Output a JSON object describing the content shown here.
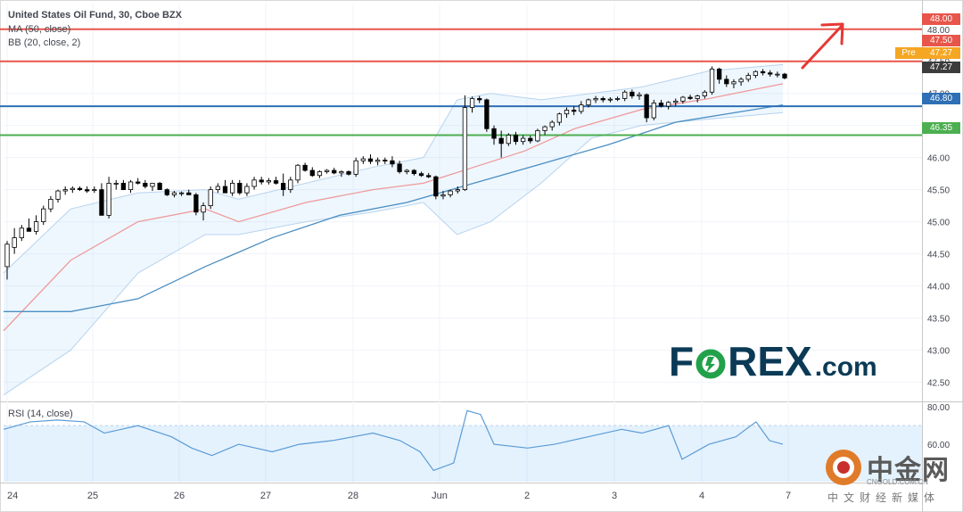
{
  "chart_data": {
    "type": "candlestick",
    "title": "United States Oil Fund, 30, Cboe BZX",
    "ma_label": "MA (50, close)",
    "bb_label": "BB (20, close, 2)",
    "x_ticks": [
      "24",
      "25",
      "26",
      "27",
      "28",
      "Jun",
      "2",
      "3",
      "4",
      "7"
    ],
    "y_ticks": [
      "48.00",
      "47.50",
      "47.00",
      "46.50",
      "46.00",
      "45.50",
      "45.00",
      "44.50",
      "44.00",
      "43.50",
      "43.00",
      "42.50"
    ],
    "ylim": [
      42.2,
      48.4
    ],
    "price_labels": {
      "resistance_high": "48.00",
      "resistance_mid": "47.50",
      "pre_label": "Pre",
      "pre_value": "47.27",
      "last_value": "47.27",
      "support_high": "46.80",
      "support_low": "46.35"
    },
    "levels": [
      {
        "value": 48.0,
        "color": "#e8554a"
      },
      {
        "value": 47.5,
        "color": "#e8554a"
      },
      {
        "value": 46.8,
        "color": "#2e6fb5"
      },
      {
        "value": 46.35,
        "color": "#4caf50"
      }
    ],
    "candles": [
      [
        44.3,
        44.7,
        44.1,
        44.65
      ],
      [
        44.6,
        44.9,
        44.5,
        44.75
      ],
      [
        44.75,
        44.95,
        44.7,
        44.9
      ],
      [
        44.9,
        45.05,
        44.85,
        44.85
      ],
      [
        44.85,
        45.1,
        44.8,
        45.0
      ],
      [
        45.0,
        45.25,
        44.95,
        45.2
      ],
      [
        45.2,
        45.4,
        45.15,
        45.35
      ],
      [
        45.35,
        45.5,
        45.3,
        45.48
      ],
      [
        45.48,
        45.55,
        45.42,
        45.5
      ],
      [
        45.5,
        45.55,
        45.45,
        45.52
      ],
      [
        45.52,
        45.55,
        45.48,
        45.5
      ],
      [
        45.5,
        45.55,
        45.45,
        45.48
      ],
      [
        45.5,
        45.55,
        45.45,
        45.5
      ],
      [
        45.5,
        45.6,
        45.1,
        45.1
      ],
      [
        45.1,
        45.7,
        45.05,
        45.6
      ],
      [
        45.6,
        45.65,
        45.5,
        45.6
      ],
      [
        45.6,
        45.65,
        45.5,
        45.5
      ],
      [
        45.5,
        45.65,
        45.45,
        45.62
      ],
      [
        45.62,
        45.68,
        45.58,
        45.6
      ],
      [
        45.6,
        45.65,
        45.52,
        45.55
      ],
      [
        45.55,
        45.6,
        45.48,
        45.6
      ],
      [
        45.6,
        45.62,
        45.5,
        45.5
      ],
      [
        45.5,
        45.52,
        45.4,
        45.42
      ],
      [
        45.42,
        45.48,
        45.38,
        45.45
      ],
      [
        45.45,
        45.47,
        45.4,
        45.45
      ],
      [
        45.45,
        45.5,
        45.42,
        45.42
      ],
      [
        45.42,
        45.45,
        45.1,
        45.15
      ],
      [
        45.15,
        45.3,
        45.02,
        45.25
      ],
      [
        45.25,
        45.55,
        45.2,
        45.5
      ],
      [
        45.5,
        45.6,
        45.45,
        45.55
      ],
      [
        45.55,
        45.65,
        45.45,
        45.45
      ],
      [
        45.45,
        45.65,
        45.4,
        45.6
      ],
      [
        45.6,
        45.65,
        45.42,
        45.45
      ],
      [
        45.45,
        45.6,
        45.4,
        45.55
      ],
      [
        45.55,
        45.7,
        45.5,
        45.65
      ],
      [
        45.65,
        45.7,
        45.58,
        45.62
      ],
      [
        45.62,
        45.68,
        45.58,
        45.64
      ],
      [
        45.64,
        45.7,
        45.58,
        45.6
      ],
      [
        45.6,
        45.75,
        45.4,
        45.5
      ],
      [
        45.5,
        45.7,
        45.45,
        45.65
      ],
      [
        45.65,
        45.9,
        45.6,
        45.88
      ],
      [
        45.88,
        45.92,
        45.78,
        45.8
      ],
      [
        45.8,
        45.85,
        45.7,
        45.72
      ],
      [
        45.72,
        45.8,
        45.68,
        45.78
      ],
      [
        45.78,
        45.82,
        45.75,
        45.8
      ],
      [
        45.8,
        45.84,
        45.74,
        45.76
      ],
      [
        45.76,
        45.8,
        45.7,
        45.78
      ],
      [
        45.78,
        45.8,
        45.72,
        45.74
      ],
      [
        45.74,
        46.0,
        45.7,
        45.95
      ],
      [
        45.95,
        46.02,
        45.9,
        45.98
      ],
      [
        45.98,
        46.05,
        45.9,
        45.94
      ],
      [
        45.94,
        46.0,
        45.88,
        45.96
      ],
      [
        45.96,
        46.0,
        45.9,
        45.95
      ],
      [
        45.95,
        46.02,
        45.85,
        45.9
      ],
      [
        45.9,
        45.95,
        45.75,
        45.78
      ],
      [
        45.78,
        45.82,
        45.74,
        45.8
      ],
      [
        45.8,
        45.82,
        45.72,
        45.75
      ],
      [
        45.75,
        45.78,
        45.7,
        45.72
      ],
      [
        45.72,
        45.76,
        45.68,
        45.7
      ],
      [
        45.7,
        45.72,
        45.35,
        45.4
      ],
      [
        45.4,
        45.48,
        45.35,
        45.42
      ],
      [
        45.42,
        45.5,
        45.38,
        45.48
      ],
      [
        45.48,
        45.55,
        45.44,
        45.5
      ],
      [
        45.5,
        46.97,
        45.48,
        46.78
      ],
      [
        46.78,
        46.95,
        46.7,
        46.92
      ],
      [
        46.92,
        46.96,
        46.85,
        46.9
      ],
      [
        46.9,
        46.92,
        46.4,
        46.45
      ],
      [
        46.45,
        46.5,
        46.2,
        46.3
      ],
      [
        46.3,
        46.42,
        46.0,
        46.22
      ],
      [
        46.22,
        46.38,
        46.18,
        46.35
      ],
      [
        46.35,
        46.4,
        46.2,
        46.25
      ],
      [
        46.25,
        46.35,
        46.2,
        46.3
      ],
      [
        46.3,
        46.34,
        46.22,
        46.26
      ],
      [
        46.26,
        46.45,
        46.24,
        46.42
      ],
      [
        46.42,
        46.5,
        46.35,
        46.48
      ],
      [
        46.48,
        46.58,
        46.42,
        46.55
      ],
      [
        46.55,
        46.7,
        46.5,
        46.68
      ],
      [
        46.68,
        46.78,
        46.62,
        46.74
      ],
      [
        46.74,
        46.8,
        46.66,
        46.72
      ],
      [
        46.72,
        46.88,
        46.68,
        46.82
      ],
      [
        46.82,
        46.92,
        46.78,
        46.9
      ],
      [
        46.9,
        46.96,
        46.85,
        46.92
      ],
      [
        46.92,
        46.95,
        46.86,
        46.9
      ],
      [
        46.9,
        46.94,
        46.86,
        46.91
      ],
      [
        46.91,
        46.95,
        46.88,
        46.92
      ],
      [
        46.92,
        47.05,
        46.88,
        47.02
      ],
      [
        47.02,
        47.06,
        46.92,
        46.96
      ],
      [
        46.96,
        47.02,
        46.9,
        46.98
      ],
      [
        46.98,
        47.0,
        46.55,
        46.62
      ],
      [
        46.62,
        46.9,
        46.58,
        46.85
      ],
      [
        46.85,
        46.9,
        46.78,
        46.8
      ],
      [
        46.8,
        46.88,
        46.75,
        46.86
      ],
      [
        46.86,
        46.92,
        46.8,
        46.88
      ],
      [
        46.88,
        46.96,
        46.84,
        46.94
      ],
      [
        46.94,
        46.98,
        46.9,
        46.92
      ],
      [
        46.92,
        46.98,
        46.86,
        46.96
      ],
      [
        46.96,
        47.05,
        46.92,
        47.02
      ],
      [
        47.02,
        47.42,
        46.98,
        47.38
      ],
      [
        47.38,
        47.4,
        47.15,
        47.22
      ],
      [
        47.22,
        47.28,
        47.1,
        47.15
      ],
      [
        47.15,
        47.22,
        47.08,
        47.18
      ],
      [
        47.18,
        47.25,
        47.12,
        47.22
      ],
      [
        47.22,
        47.32,
        47.18,
        47.28
      ],
      [
        47.28,
        47.36,
        47.24,
        47.34
      ],
      [
        47.34,
        47.38,
        47.28,
        47.32
      ],
      [
        47.32,
        47.36,
        47.26,
        47.3
      ],
      [
        47.3,
        47.34,
        47.25,
        47.3
      ],
      [
        47.3,
        47.32,
        47.22,
        47.24
      ]
    ],
    "ma50": [
      [
        0,
        43.6
      ],
      [
        20,
        43.6
      ],
      [
        40,
        43.8
      ],
      [
        60,
        44.3
      ],
      [
        80,
        44.75
      ],
      [
        100,
        45.1
      ],
      [
        120,
        45.3
      ],
      [
        140,
        45.6
      ],
      [
        160,
        45.9
      ],
      [
        180,
        46.2
      ],
      [
        200,
        46.55
      ],
      [
        220,
        46.72
      ],
      [
        232,
        46.82
      ]
    ],
    "bb_mid": [
      [
        0,
        43.3
      ],
      [
        20,
        44.4
      ],
      [
        40,
        45.0
      ],
      [
        60,
        45.2
      ],
      [
        70,
        45.0
      ],
      [
        90,
        45.3
      ],
      [
        110,
        45.5
      ],
      [
        125,
        45.6
      ],
      [
        140,
        45.85
      ],
      [
        155,
        46.1
      ],
      [
        170,
        46.45
      ],
      [
        190,
        46.75
      ],
      [
        210,
        46.92
      ],
      [
        232,
        47.15
      ]
    ],
    "bb_upper": [
      [
        0,
        44.2
      ],
      [
        20,
        45.2
      ],
      [
        40,
        45.45
      ],
      [
        60,
        45.5
      ],
      [
        70,
        45.35
      ],
      [
        90,
        45.6
      ],
      [
        110,
        45.85
      ],
      [
        125,
        46.0
      ],
      [
        135,
        46.9
      ],
      [
        145,
        47.0
      ],
      [
        160,
        46.9
      ],
      [
        175,
        47.0
      ],
      [
        190,
        47.1
      ],
      [
        210,
        47.35
      ],
      [
        232,
        47.45
      ]
    ],
    "bb_lower": [
      [
        0,
        42.3
      ],
      [
        20,
        43.0
      ],
      [
        40,
        44.2
      ],
      [
        60,
        44.8
      ],
      [
        70,
        44.8
      ],
      [
        90,
        45.0
      ],
      [
        110,
        45.15
      ],
      [
        125,
        45.3
      ],
      [
        135,
        44.8
      ],
      [
        145,
        45.0
      ],
      [
        160,
        45.6
      ],
      [
        175,
        46.3
      ],
      [
        190,
        46.5
      ],
      [
        210,
        46.6
      ],
      [
        232,
        46.7
      ]
    ],
    "rsi": {
      "title": "RSI (14, close)",
      "y_ticks": [
        "80.00",
        "60.00"
      ],
      "ylim": [
        40,
        82
      ],
      "values": [
        [
          0,
          68
        ],
        [
          8,
          72
        ],
        [
          16,
          73
        ],
        [
          24,
          72
        ],
        [
          30,
          66
        ],
        [
          40,
          70
        ],
        [
          50,
          64
        ],
        [
          56,
          58
        ],
        [
          62,
          54
        ],
        [
          70,
          60
        ],
        [
          80,
          56
        ],
        [
          88,
          60
        ],
        [
          98,
          62
        ],
        [
          104,
          64
        ],
        [
          110,
          66
        ],
        [
          118,
          62
        ],
        [
          124,
          56
        ],
        [
          128,
          46
        ],
        [
          134,
          50
        ],
        [
          138,
          78
        ],
        [
          142,
          76
        ],
        [
          146,
          60
        ],
        [
          156,
          58
        ],
        [
          164,
          60
        ],
        [
          174,
          64
        ],
        [
          184,
          68
        ],
        [
          190,
          66
        ],
        [
          198,
          70
        ],
        [
          202,
          52
        ],
        [
          210,
          60
        ],
        [
          218,
          64
        ],
        [
          224,
          72
        ],
        [
          228,
          62
        ],
        [
          232,
          60
        ]
      ]
    }
  },
  "logo": {
    "f": "F",
    "rex": "REX",
    "com": ".com"
  },
  "watermark": {
    "cn": "中金网",
    "url": "CNGOLD.COM.CN",
    "sub": "中文财经新媒体"
  }
}
